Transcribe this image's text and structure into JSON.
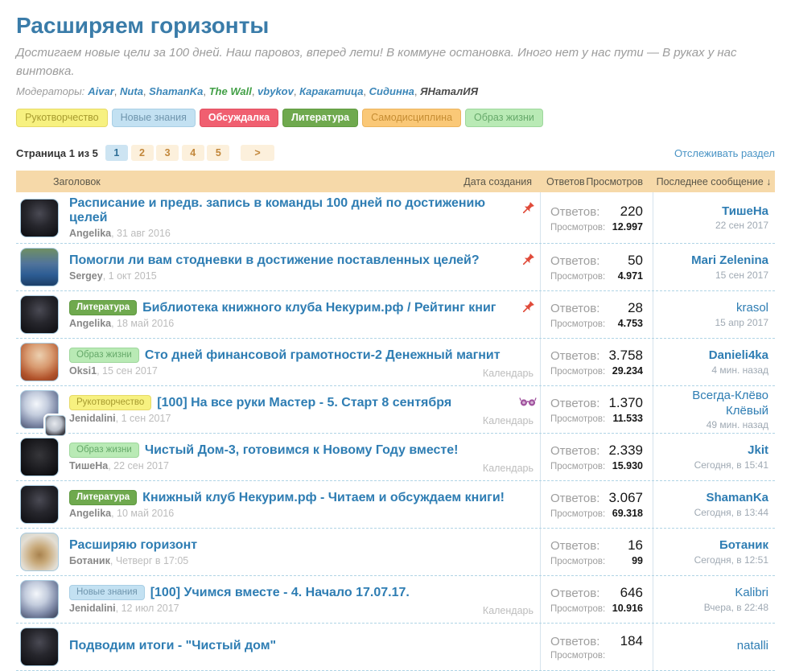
{
  "header": {
    "title": "Расширяем горизонты",
    "description": "Достигаем новые цели за 100 дней. Наш паровоз, вперед лети! В коммуне остановка. Иного нет у нас пути — В руках у нас винтовка.",
    "moderators_label": "Модераторы:",
    "moderators": [
      {
        "name": "Aivar",
        "color": "#3c87b9"
      },
      {
        "name": "Nuta",
        "color": "#3c87b9"
      },
      {
        "name": "ShamanKa",
        "color": "#3c87b9"
      },
      {
        "name": "The Wall",
        "color": "#43a047"
      },
      {
        "name": "vbykov",
        "color": "#3c87b9"
      },
      {
        "name": "Каракатица",
        "color": "#3c87b9"
      },
      {
        "name": "Сидинна",
        "color": "#3c87b9"
      },
      {
        "name": "ЯНаталИЯ",
        "color": "#4a4a4a"
      }
    ]
  },
  "tags": [
    {
      "label": "Рукотворчество",
      "bg": "#f7f180",
      "fg": "#a79b2f",
      "border": "#e6da67",
      "bold": false
    },
    {
      "label": "Новые знания",
      "bg": "#c3e1f2",
      "fg": "#6f95ad",
      "border": "#a9cfe5",
      "bold": false
    },
    {
      "label": "Обсуждалка",
      "bg": "#f05f70",
      "fg": "#ffffff",
      "border": "#e14f60",
      "bold": true
    },
    {
      "label": "Литература",
      "bg": "#6fa94e",
      "fg": "#ffffff",
      "border": "#5f9a40",
      "bold": true
    },
    {
      "label": "Самодисциплина",
      "bg": "#fac877",
      "fg": "#c68d33",
      "border": "#ecb45e",
      "bold": false
    },
    {
      "label": "Образ жизни",
      "bg": "#b9eab5",
      "fg": "#66a96a",
      "border": "#9ed79c",
      "bold": false
    }
  ],
  "pagination": {
    "label": "Страница 1 из 5",
    "pages": [
      "1",
      "2",
      "3",
      "4",
      "5"
    ],
    "active_index": 0,
    "next_label": ">"
  },
  "follow_link": "Отслеживать раздел",
  "table": {
    "headers": {
      "title": "Заголовок",
      "created": "Дата создания",
      "replies": "Ответов",
      "views": "Просмотров",
      "last": "Последнее сообщение ↓"
    },
    "labels": {
      "replies": "Ответов:",
      "views": "Просмотров:",
      "calendar": "Календарь"
    },
    "rows": [
      {
        "avatar": "angelika",
        "mini": false,
        "tag": "",
        "title": "Расписание и предв. запись в команды 100 дней по достижению целей",
        "icon": "pin",
        "author": "Angelika",
        "created": "31 авг 2016",
        "calendar": false,
        "replies": "220",
        "views": "12.997",
        "last_user": "ТишеНа",
        "last_bold": true,
        "last_when": "22 сен 2017"
      },
      {
        "avatar": "sergey",
        "mini": false,
        "tag": "",
        "title": "Помогли ли вам стодневки в достижение поставленных целей?",
        "icon": "pin",
        "author": "Sergey",
        "created": "1 окт 2015",
        "calendar": false,
        "replies": "50",
        "views": "4.971",
        "last_user": "Mari Zelenina",
        "last_bold": true,
        "last_when": "15 сен 2017"
      },
      {
        "avatar": "angelika",
        "mini": false,
        "tag": "Литература",
        "title": "Библиотека книжного клуба Некурим.рф / Рейтинг книг",
        "icon": "pin",
        "author": "Angelika",
        "created": "18 май 2016",
        "calendar": false,
        "replies": "28",
        "views": "4.753",
        "last_user": "krasol",
        "last_bold": false,
        "last_when": "15 апр 2017"
      },
      {
        "avatar": "oksi",
        "mini": false,
        "tag": "Образ жизни",
        "title": "Сто дней финансовой грамотности-2 Денежный магнит",
        "icon": "",
        "author": "Oksi1",
        "created": "15 сен 2017",
        "calendar": true,
        "replies": "3.758",
        "views": "29.234",
        "last_user": "Danieli4ka",
        "last_bold": true,
        "last_when": "4 мин. назад"
      },
      {
        "avatar": "sphere",
        "mini": true,
        "tag": "Рукотворчество",
        "title": "[100] На все руки Мастер - 5. Старт 8 сентября",
        "icon": "glasses",
        "author": "Jenidalini",
        "created": "1 сен 2017",
        "calendar": true,
        "replies": "1.370",
        "views": "11.533",
        "last_user": "Всегда-Клёво Клёвый",
        "last_bold": false,
        "last_when": "49 мин. назад"
      },
      {
        "avatar": "cat",
        "mini": false,
        "tag": "Образ жизни",
        "title": "Чистый Дом-3, готовимся к Новому Году вместе!",
        "icon": "",
        "author": "ТишеНа",
        "created": "22 сен 2017",
        "calendar": true,
        "replies": "2.339",
        "views": "15.930",
        "last_user": "Jkit",
        "last_bold": true,
        "last_when": "Сегодня, в 15:41"
      },
      {
        "avatar": "angelika",
        "mini": false,
        "tag": "Литература",
        "title": "Книжный клуб Некурим.рф - Читаем и обсуждаем книги!",
        "icon": "",
        "author": "Angelika",
        "created": "10 май 2016",
        "calendar": false,
        "replies": "3.067",
        "views": "69.318",
        "last_user": "ShamanKa",
        "last_bold": true,
        "last_when": "Сегодня, в 13:44"
      },
      {
        "avatar": "hamster",
        "mini": false,
        "tag": "",
        "title": "Расширяю горизонт",
        "icon": "",
        "author": "Ботаник",
        "created": "Четверг в 17:05",
        "calendar": false,
        "replies": "16",
        "views": "99",
        "last_user": "Ботаник",
        "last_bold": true,
        "last_when": "Сегодня, в 12:51"
      },
      {
        "avatar": "sphere",
        "mini": false,
        "tag": "Новые знания",
        "title": "[100] Учимся вместе - 4. Начало 17.07.17.",
        "icon": "",
        "author": "Jenidalini",
        "created": "12 июл 2017",
        "calendar": true,
        "replies": "646",
        "views": "10.916",
        "last_user": "Kalibri",
        "last_bold": false,
        "last_when": "Вчера, в 22:48"
      },
      {
        "avatar": "angelika",
        "mini": false,
        "tag": "",
        "title": "Подводим итоги - \"Чистый дом\"",
        "icon": "",
        "author": "",
        "created": "",
        "calendar": false,
        "replies": "184",
        "views": "",
        "last_user": "natalli",
        "last_bold": false,
        "last_when": ""
      }
    ]
  }
}
